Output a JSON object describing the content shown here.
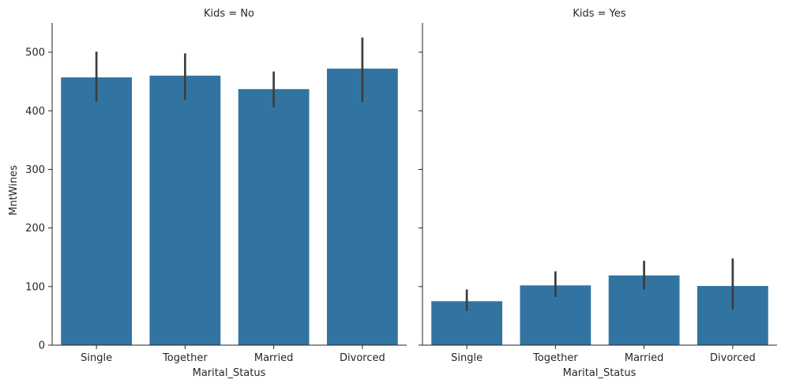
{
  "chart_data": [
    {
      "type": "bar",
      "title": "Kids = No",
      "xlabel": "Marital_Status",
      "ylabel": "MntWines",
      "ylim": [
        0,
        550
      ],
      "yticks": [
        0,
        100,
        200,
        300,
        400,
        500
      ],
      "categories": [
        "Single",
        "Together",
        "Married",
        "Divorced"
      ],
      "values": [
        457,
        460,
        437,
        472
      ],
      "ci_low": [
        415,
        419,
        406,
        415
      ],
      "ci_high": [
        501,
        498,
        467,
        525
      ],
      "color": "#3274a1",
      "errorbar_color": "#3d3d3d",
      "grid": false
    },
    {
      "type": "bar",
      "title": "Kids = Yes",
      "xlabel": "Marital_Status",
      "ylabel": "",
      "ylim": [
        0,
        550
      ],
      "yticks": [
        0,
        100,
        200,
        300,
        400,
        500
      ],
      "categories": [
        "Single",
        "Together",
        "Married",
        "Divorced"
      ],
      "values": [
        75,
        102,
        119,
        101
      ],
      "ci_low": [
        58,
        82,
        95,
        61
      ],
      "ci_high": [
        95,
        126,
        144,
        148
      ],
      "color": "#3274a1",
      "errorbar_color": "#3d3d3d",
      "grid": false
    }
  ]
}
